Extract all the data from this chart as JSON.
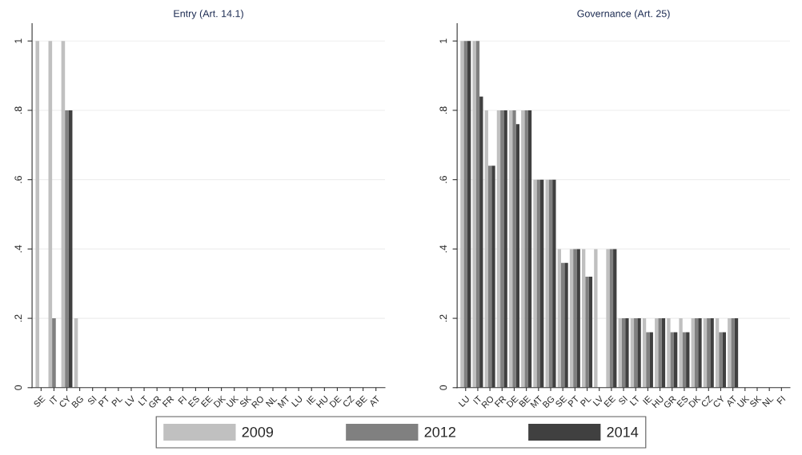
{
  "chart_data": [
    {
      "type": "bar",
      "title": "Entry (Art. 14.1)",
      "categories": [
        "SE",
        "IT",
        "CY",
        "BG",
        "SI",
        "PT",
        "PL",
        "LV",
        "LT",
        "GR",
        "FR",
        "FI",
        "ES",
        "EE",
        "DK",
        "UK",
        "SK",
        "RO",
        "NL",
        "MT",
        "LU",
        "IE",
        "HU",
        "DE",
        "CZ",
        "BE",
        "AT"
      ],
      "series": [
        {
          "name": "2009",
          "color": "#c0c0c0",
          "values": [
            1,
            1,
            1,
            0.2,
            0,
            0,
            0,
            0,
            0,
            0,
            0,
            0,
            0,
            0,
            0,
            0,
            0,
            0,
            0,
            0,
            0,
            0,
            0,
            0,
            0,
            0,
            0
          ]
        },
        {
          "name": "2012",
          "color": "#808080",
          "values": [
            0,
            0.2,
            0.8,
            0,
            0,
            0,
            0,
            0,
            0,
            0,
            0,
            0,
            0,
            0,
            0,
            0,
            0,
            0,
            0,
            0,
            0,
            0,
            0,
            0,
            0,
            0,
            0
          ]
        },
        {
          "name": "2014",
          "color": "#404040",
          "values": [
            0,
            0,
            0.8,
            0,
            0,
            0,
            0,
            0,
            0,
            0,
            0,
            0,
            0,
            0,
            0,
            0,
            0,
            0,
            0,
            0,
            0,
            0,
            0,
            0,
            0,
            0,
            0
          ]
        }
      ],
      "ylim": [
        0,
        1.05
      ],
      "yticks": [
        {
          "value": 0,
          "label": "0"
        },
        {
          "value": 0.2,
          "label": ".2"
        },
        {
          "value": 0.4,
          "label": ".4"
        },
        {
          "value": 0.6,
          "label": ".6"
        },
        {
          "value": 0.8,
          "label": ".8"
        },
        {
          "value": 1,
          "label": "1"
        }
      ],
      "grid": "y",
      "legend": "bottom"
    },
    {
      "type": "bar",
      "title": "Governance (Art. 25)",
      "categories": [
        "LU",
        "IT",
        "RO",
        "FR",
        "DE",
        "BE",
        "MT",
        "BG",
        "SE",
        "PT",
        "PL",
        "LV",
        "EE",
        "SI",
        "LT",
        "IE",
        "HU",
        "GR",
        "ES",
        "DK",
        "CZ",
        "CY",
        "AT",
        "UK",
        "SK",
        "NL",
        "FI"
      ],
      "series": [
        {
          "color": "#c0c0c0",
          "values": [
            1,
            1,
            0.8,
            0.8,
            0.8,
            0.8,
            0.6,
            0.6,
            0.4,
            0.4,
            0.4,
            0.4,
            0.4,
            0.2,
            0.2,
            0.2,
            0.2,
            0.2,
            0.2,
            0.2,
            0.2,
            0.2,
            0.2,
            0,
            0,
            0,
            0
          ]
        },
        {
          "color": "#808080",
          "values": [
            1,
            1,
            0.64,
            0.8,
            0.8,
            0.8,
            0.6,
            0.6,
            0.36,
            0.4,
            0.32,
            0,
            0.4,
            0.2,
            0.2,
            0.16,
            0.2,
            0.16,
            0.16,
            0.2,
            0.2,
            0.16,
            0.2,
            0,
            0,
            0,
            0
          ]
        },
        {
          "color": "#404040",
          "values": [
            1,
            0.84,
            0.64,
            0.8,
            0.76,
            0.8,
            0.6,
            0.6,
            0.36,
            0.4,
            0.32,
            0,
            0.4,
            0.2,
            0.2,
            0.16,
            0.2,
            0.16,
            0.16,
            0.2,
            0.2,
            0.16,
            0.2,
            0,
            0,
            0,
            0
          ]
        }
      ],
      "ylim": [
        0,
        1.05
      ],
      "yticks": [
        {
          "value": 0,
          "label": "0"
        },
        {
          "value": 0.2,
          "label": ".2"
        },
        {
          "value": 0.4,
          "label": ".4"
        },
        {
          "value": 0.6,
          "label": ".6"
        },
        {
          "value": 0.8,
          "label": ".8"
        },
        {
          "value": 1,
          "label": "1"
        }
      ],
      "grid": "y"
    }
  ]
}
